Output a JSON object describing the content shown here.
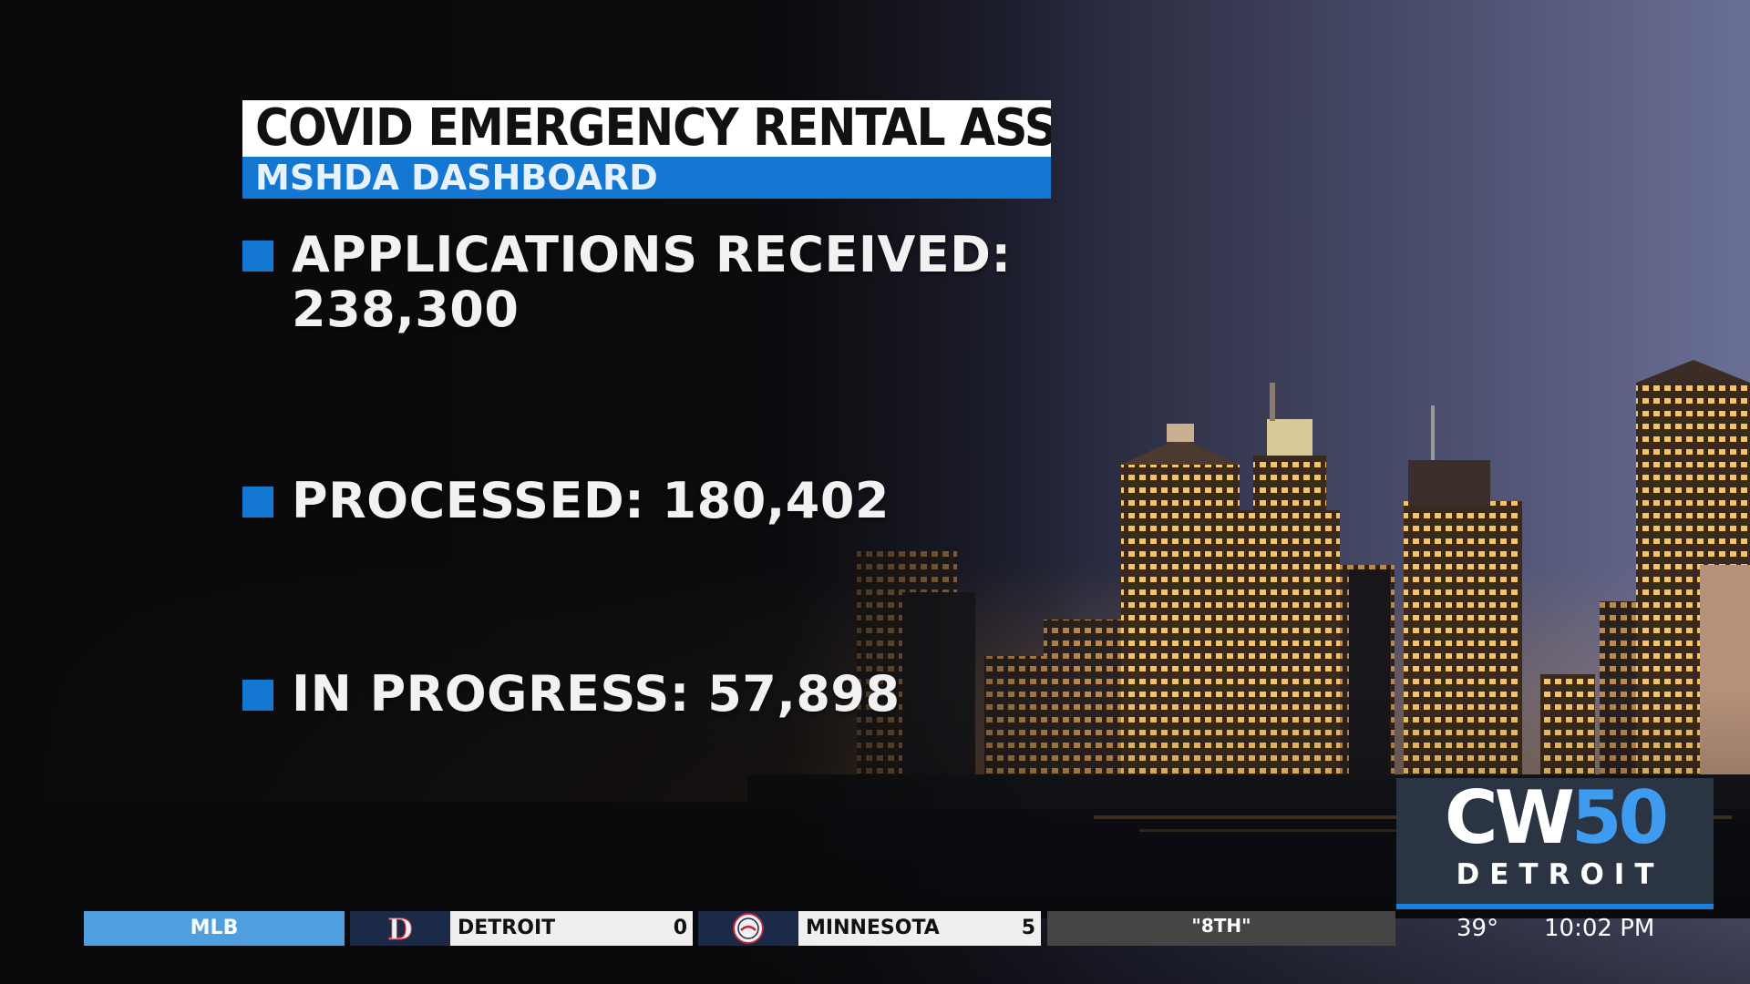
{
  "title": "COVID EMERGENCY RENTAL ASSISTANCE",
  "subtitle": "MSHDA DASHBOARD",
  "stats": [
    {
      "line1": "APPLICATIONS RECEIVED:",
      "line2": "238,300"
    },
    {
      "line1": "PROCESSED: 180,402"
    },
    {
      "line1": "IN PROGRESS: 57,898"
    }
  ],
  "logo": {
    "cw": "CW",
    "number": "50",
    "city": "DETROIT"
  },
  "ticker": {
    "league": "MLB",
    "team1": {
      "name": "DETROIT",
      "score": "0",
      "logo_icon": "tigers-logo-icon"
    },
    "team2": {
      "name": "MINNESOTA",
      "score": "5",
      "logo_icon": "twins-logo-icon"
    },
    "status": "\"8TH\"",
    "temperature": "39°",
    "time": "10:02 PM"
  },
  "colors": {
    "accent_blue": "#1478d2",
    "logo_blue": "#3f9bf0",
    "ticker_blue": "#4e9ee0"
  }
}
